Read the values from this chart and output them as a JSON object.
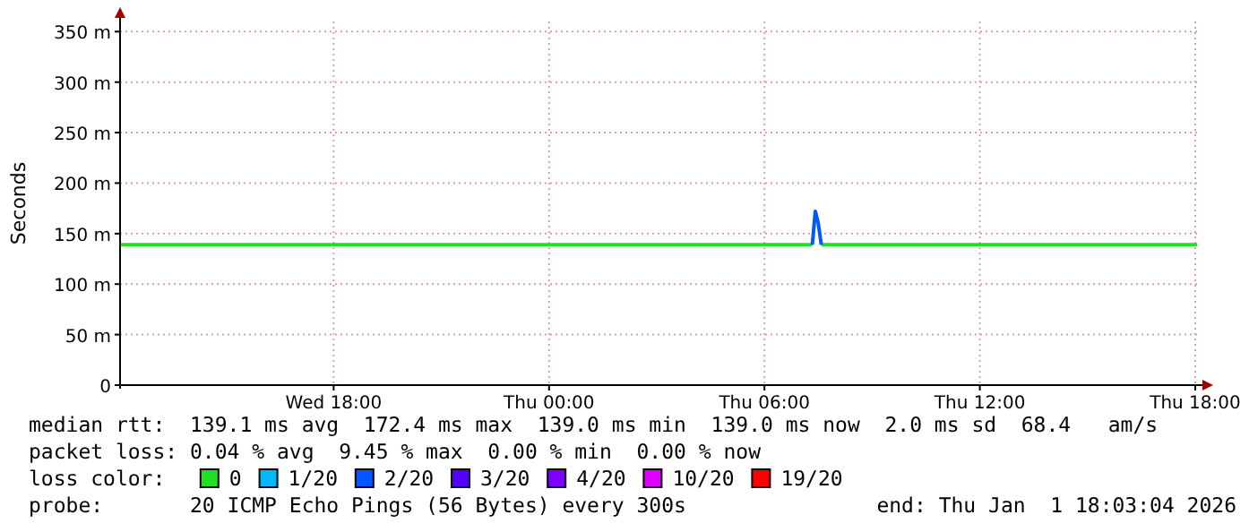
{
  "chart_data": {
    "type": "line",
    "ylabel": "Seconds",
    "x": [
      "2025-12-31T12:03",
      "2026-01-01T07:20",
      "2026-01-01T07:25",
      "2026-01-01T07:30",
      "2026-01-01T07:35",
      "2026-01-01T18:03"
    ],
    "series": [
      {
        "name": "0",
        "color": "#20e020",
        "values": [
          139,
          139,
          null,
          null,
          139,
          139
        ]
      },
      {
        "name": "1/20",
        "color": "#00b8ff",
        "values": [
          null,
          null,
          null,
          null,
          null,
          null
        ]
      },
      {
        "name": "2/20",
        "color": "#0059ff",
        "values": [
          null,
          139,
          172,
          160,
          139,
          null
        ]
      },
      {
        "name": "3/20",
        "color": "#5500ff",
        "values": [
          null,
          null,
          null,
          null,
          null,
          null
        ]
      },
      {
        "name": "4/20",
        "color": "#7e00ff",
        "values": [
          null,
          null,
          null,
          null,
          null,
          null
        ]
      },
      {
        "name": "10/20",
        "color": "#dd00ff",
        "values": [
          null,
          null,
          null,
          null,
          null,
          null
        ]
      },
      {
        "name": "19/20",
        "color": "#ff0000",
        "values": [
          null,
          null,
          null,
          null,
          null,
          null
        ]
      }
    ],
    "xlim": [
      "2025-12-31T12:03",
      "2026-01-01T18:03"
    ],
    "xticks": [
      {
        "value": "2025-12-31T18:00",
        "label": "Wed 18:00"
      },
      {
        "value": "2026-01-01T00:00",
        "label": "Thu 00:00"
      },
      {
        "value": "2026-01-01T06:00",
        "label": "Thu 06:00"
      },
      {
        "value": "2026-01-01T12:00",
        "label": "Thu 12:00"
      },
      {
        "value": "2026-01-01T18:00",
        "label": "Thu 18:00"
      }
    ],
    "ylim": [
      0,
      360
    ],
    "yticks": [
      0,
      {
        "value": 50,
        "label": "50 m"
      },
      {
        "value": 100,
        "label": "100 m"
      },
      {
        "value": 150,
        "label": "150 m"
      },
      {
        "value": 200,
        "label": "200 m"
      },
      {
        "value": 250,
        "label": "250 m"
      },
      {
        "value": 300,
        "label": "300 m"
      },
      {
        "value": 350,
        "label": "350 m"
      }
    ],
    "grid": true,
    "legend": "bottom",
    "legend_title": "loss color:",
    "line_style": "solid",
    "marker": "none",
    "annotations": [
      "median rtt:  139.1 ms avg  172.4 ms max  139.0 ms min  139.0 ms now  2.0 ms sd  68.4   am/s",
      "packet loss: 0.04 % avg  9.45 % max  0.00 % min  0.00 % now",
      "probe:       20 ICMP Echo Pings (56 Bytes) every 300s",
      "end: Thu Jan  1 18:03:04 2026"
    ]
  }
}
